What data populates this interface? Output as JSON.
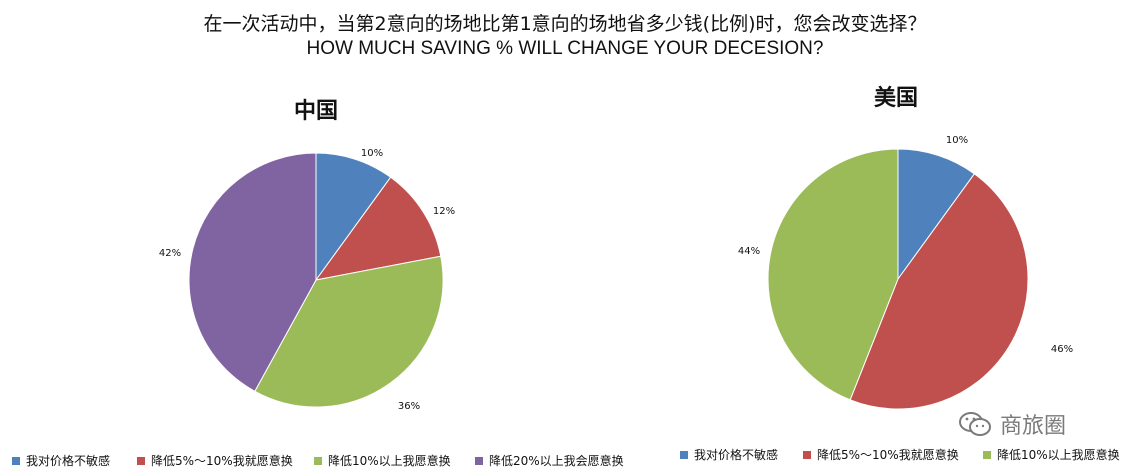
{
  "header": {
    "title_cn": "在一次活动中，当第2意向的场地比第1意向的场地省多少钱(比例)时，您会改变选择？",
    "title_en": "HOW MUCH SAVING % WILL CHANGE YOUR DECESION?"
  },
  "watermark": {
    "text": "商旅圈",
    "icon": "wechat-icon"
  },
  "chart_data": [
    {
      "type": "pie",
      "title": "中国",
      "labels": [
        "我对价格不敏感",
        "降低5%～10%我就愿意换",
        "降低10%以上我愿意换",
        "降低20%以上我会愿意换"
      ],
      "values": [
        10,
        12,
        36,
        42
      ],
      "data_labels": [
        "10%",
        "12%",
        "36%",
        "42%"
      ],
      "colors": [
        "#4f81bd",
        "#c0504d",
        "#9bbb59",
        "#8064a2"
      ],
      "legend": "bottom"
    },
    {
      "type": "pie",
      "title": "美国",
      "labels": [
        "我对价格不敏感",
        "降低5%～10%我就愿意换",
        "降低10%以上我愿意换"
      ],
      "values": [
        10,
        46,
        44
      ],
      "data_labels": [
        "10%",
        "46%",
        "44%"
      ],
      "colors": [
        "#4f81bd",
        "#c0504d",
        "#9bbb59"
      ],
      "legend": "bottom"
    }
  ]
}
